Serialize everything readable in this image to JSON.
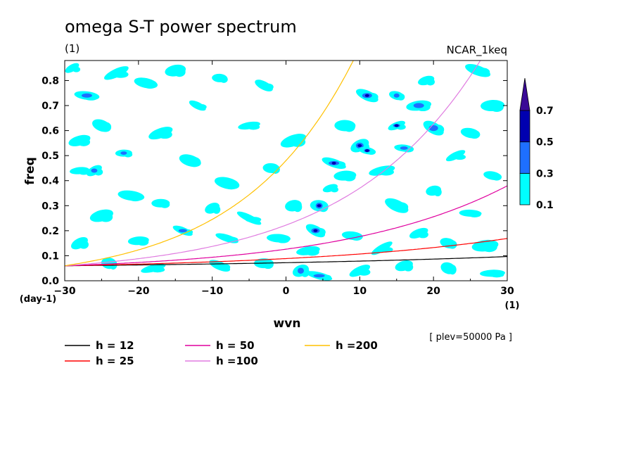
{
  "title": "omega S-T power spectrum",
  "subtitle_left": "(1)",
  "subtitle_right": "NCAR_1keq",
  "level_note": "[ plev=50000 Pa ]",
  "colors": {
    "shade_1": "#00ffff",
    "shade_2": "#1e6fff",
    "shade_3": "#0000b0",
    "shade_4": "#3a0a96"
  },
  "chart_data": {
    "type": "contour",
    "title": "omega S-T power spectrum",
    "xlabel": "wvn",
    "ylabel": "freq",
    "x_unit": "(1)",
    "y_unit": "(day-1)",
    "xlim": [
      -30,
      30
    ],
    "ylim": [
      0,
      0.88
    ],
    "x_ticks": [
      "−30",
      "−20",
      "−10",
      "0",
      "10",
      "20",
      "30"
    ],
    "x_tick_values": [
      -30,
      -20,
      -10,
      0,
      10,
      20,
      30
    ],
    "y_ticks": [
      "0.0",
      "0.1",
      "0.2",
      "0.3",
      "0.4",
      "0.5",
      "0.6",
      "0.7",
      "0.8"
    ],
    "y_tick_values": [
      0,
      0.1,
      0.2,
      0.3,
      0.4,
      0.5,
      0.6,
      0.7,
      0.8
    ],
    "colorbar": {
      "levels": [
        "0.1",
        "0.3",
        "0.5",
        "0.7"
      ],
      "colors": [
        "#00ffff",
        "#1e6fff",
        "#0000b0",
        "#3a0a96"
      ]
    },
    "dispersion_curves": [
      {
        "name": "h = 12",
        "color": "#000000",
        "h": 12
      },
      {
        "name": "h = 25",
        "color": "#ff0000",
        "h": 25
      },
      {
        "name": "h = 50",
        "color": "#e0009e",
        "h": 50
      },
      {
        "name": "h =100",
        "color": "#e07ce0",
        "h": 100
      },
      {
        "name": "h =200",
        "color": "#ffc000",
        "h": 200
      }
    ],
    "power_blobs": [
      {
        "x": -29,
        "y": 0.85,
        "v": 0.15
      },
      {
        "x": -27,
        "y": 0.74,
        "v": 0.35
      },
      {
        "x": -28,
        "y": 0.56,
        "v": 0.2
      },
      {
        "x": -25,
        "y": 0.62,
        "v": 0.15
      },
      {
        "x": -22,
        "y": 0.51,
        "v": 0.3
      },
      {
        "x": -23,
        "y": 0.83,
        "v": 0.15
      },
      {
        "x": -19,
        "y": 0.79,
        "v": 0.2
      },
      {
        "x": -15,
        "y": 0.84,
        "v": 0.15
      },
      {
        "x": -12,
        "y": 0.7,
        "v": 0.15
      },
      {
        "x": -9,
        "y": 0.81,
        "v": 0.2
      },
      {
        "x": -17,
        "y": 0.59,
        "v": 0.15
      },
      {
        "x": -13,
        "y": 0.48,
        "v": 0.2
      },
      {
        "x": -28,
        "y": 0.44,
        "v": 0.2
      },
      {
        "x": -26,
        "y": 0.44,
        "v": 0.35
      },
      {
        "x": -21,
        "y": 0.34,
        "v": 0.15
      },
      {
        "x": -25,
        "y": 0.26,
        "v": 0.2
      },
      {
        "x": -14,
        "y": 0.2,
        "v": 0.35
      },
      {
        "x": -17,
        "y": 0.31,
        "v": 0.15
      },
      {
        "x": -10,
        "y": 0.29,
        "v": 0.15
      },
      {
        "x": -8,
        "y": 0.39,
        "v": 0.2
      },
      {
        "x": -5,
        "y": 0.62,
        "v": 0.15
      },
      {
        "x": -3,
        "y": 0.78,
        "v": 0.15
      },
      {
        "x": -2,
        "y": 0.45,
        "v": 0.2
      },
      {
        "x": 1,
        "y": 0.56,
        "v": 0.15
      },
      {
        "x": -8,
        "y": 0.17,
        "v": 0.2
      },
      {
        "x": -20,
        "y": 0.16,
        "v": 0.2
      },
      {
        "x": -28,
        "y": 0.15,
        "v": 0.2
      },
      {
        "x": -24,
        "y": 0.07,
        "v": 0.25
      },
      {
        "x": -18,
        "y": 0.05,
        "v": 0.15
      },
      {
        "x": -9,
        "y": 0.06,
        "v": 0.15
      },
      {
        "x": -3,
        "y": 0.07,
        "v": 0.2
      },
      {
        "x": 2,
        "y": 0.04,
        "v": 0.35
      },
      {
        "x": 4.5,
        "y": 0.02,
        "v": 0.35
      },
      {
        "x": 3,
        "y": 0.12,
        "v": 0.25
      },
      {
        "x": 4,
        "y": 0.2,
        "v": 0.4
      },
      {
        "x": 4.5,
        "y": 0.3,
        "v": 0.45
      },
      {
        "x": 6,
        "y": 0.37,
        "v": 0.25
      },
      {
        "x": 6.5,
        "y": 0.47,
        "v": 0.4
      },
      {
        "x": 8,
        "y": 0.42,
        "v": 0.2
      },
      {
        "x": 10,
        "y": 0.54,
        "v": 0.45
      },
      {
        "x": 11,
        "y": 0.52,
        "v": 0.45
      },
      {
        "x": 13,
        "y": 0.44,
        "v": 0.25
      },
      {
        "x": 11,
        "y": 0.74,
        "v": 0.4
      },
      {
        "x": 8,
        "y": 0.62,
        "v": 0.25
      },
      {
        "x": 15,
        "y": 0.62,
        "v": 0.4
      },
      {
        "x": 15,
        "y": 0.74,
        "v": 0.35
      },
      {
        "x": 18,
        "y": 0.7,
        "v": 0.35
      },
      {
        "x": 20,
        "y": 0.61,
        "v": 0.35
      },
      {
        "x": 16,
        "y": 0.53,
        "v": 0.3
      },
      {
        "x": 19,
        "y": 0.8,
        "v": 0.15
      },
      {
        "x": 26,
        "y": 0.84,
        "v": 0.15
      },
      {
        "x": 28,
        "y": 0.7,
        "v": 0.15
      },
      {
        "x": 23,
        "y": 0.5,
        "v": 0.2
      },
      {
        "x": 28,
        "y": 0.42,
        "v": 0.2
      },
      {
        "x": 20,
        "y": 0.36,
        "v": 0.15
      },
      {
        "x": 15,
        "y": 0.3,
        "v": 0.2
      },
      {
        "x": 25,
        "y": 0.27,
        "v": 0.15
      },
      {
        "x": 18,
        "y": 0.19,
        "v": 0.2
      },
      {
        "x": 22,
        "y": 0.15,
        "v": 0.2
      },
      {
        "x": 27,
        "y": 0.14,
        "v": 0.25
      },
      {
        "x": 13,
        "y": 0.13,
        "v": 0.2
      },
      {
        "x": 9,
        "y": 0.18,
        "v": 0.15
      },
      {
        "x": 16,
        "y": 0.06,
        "v": 0.2
      },
      {
        "x": 22,
        "y": 0.05,
        "v": 0.15
      },
      {
        "x": 28,
        "y": 0.03,
        "v": 0.2
      },
      {
        "x": 10,
        "y": 0.04,
        "v": 0.15
      },
      {
        "x": 25,
        "y": 0.59,
        "v": 0.2
      },
      {
        "x": 1,
        "y": 0.3,
        "v": 0.15
      },
      {
        "x": -5,
        "y": 0.25,
        "v": 0.15
      },
      {
        "x": -1,
        "y": 0.17,
        "v": 0.2
      }
    ]
  },
  "legend": {
    "items": [
      "h = 12",
      "h = 25",
      "h = 50",
      "h =100",
      "h =200"
    ]
  }
}
